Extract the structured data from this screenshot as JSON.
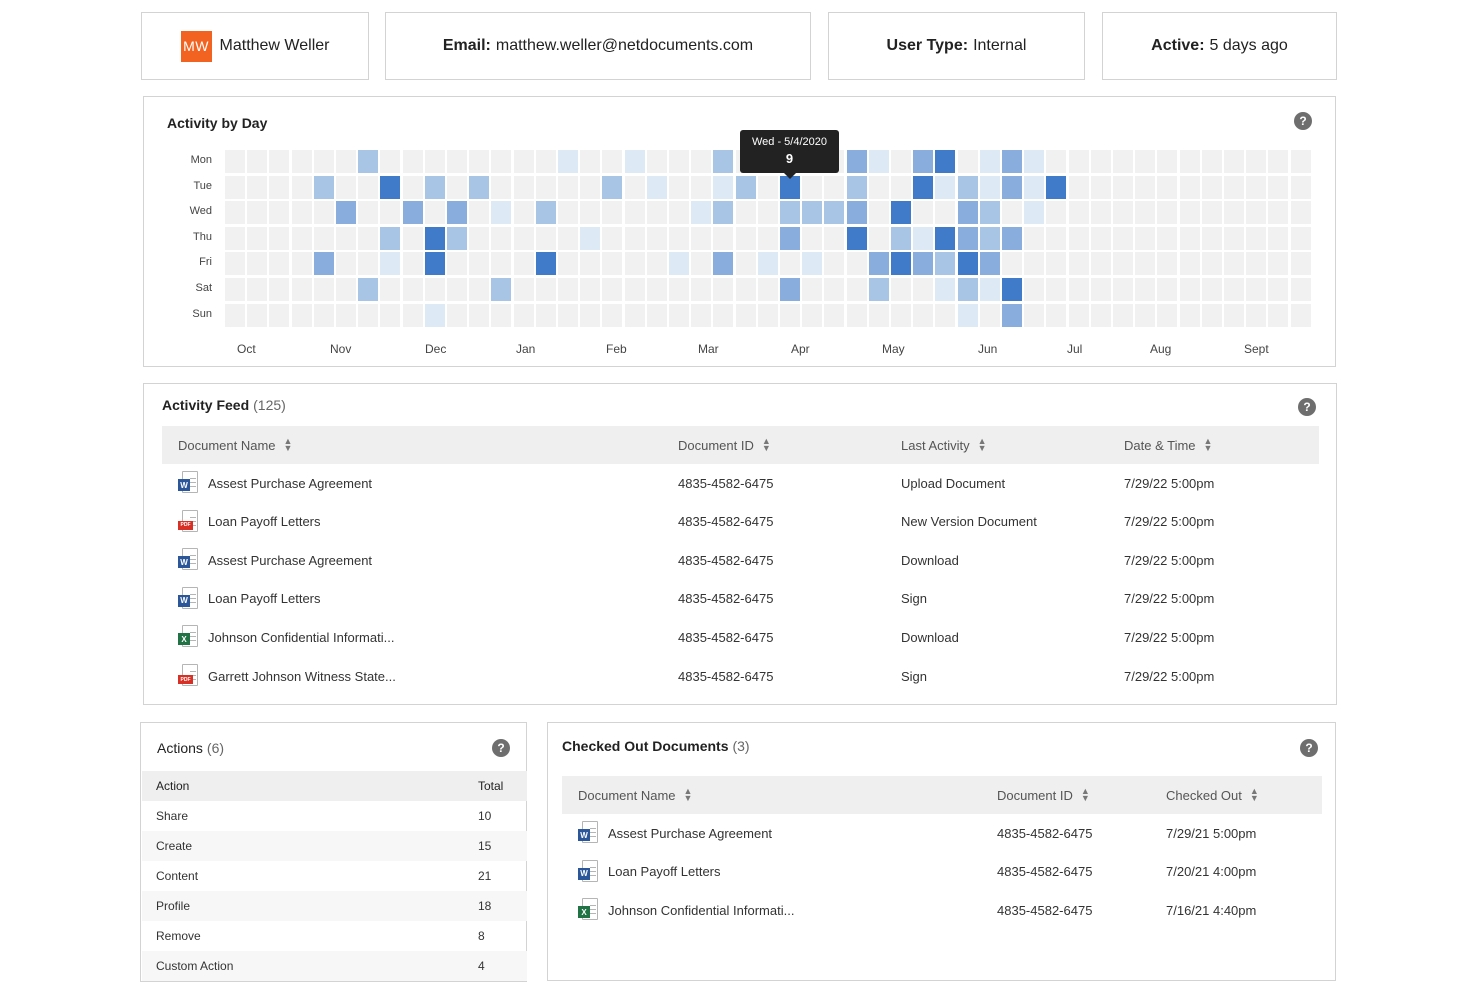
{
  "user": {
    "initials": "MW",
    "name": "Matthew Weller",
    "email_label": "Email:",
    "email": "matthew.weller@netdocuments.com",
    "type_label": "User Type:",
    "type": "Internal",
    "active_label": "Active:",
    "active": "5 days ago"
  },
  "activity_by_day": {
    "title": "Activity by Day",
    "days": [
      "Mon",
      "Tue",
      "Wed",
      "Thu",
      "Fri",
      "Sat",
      "Sun"
    ],
    "months": [
      "Oct",
      "Nov",
      "Dec",
      "Jan",
      "Feb",
      "Mar",
      "Apr",
      "May",
      "Jun",
      "Jul",
      "Aug",
      "Sept"
    ],
    "tooltip": {
      "date": "Wed - 5/4/2020",
      "value": "9"
    },
    "colors": {
      "empty": "#f1f1f1",
      "l1": "#dde9f5",
      "l2": "#a8c5e6",
      "l3": "#89aedd",
      "l4": "#3f7bc8"
    }
  },
  "chart_data": {
    "type": "heatmap",
    "title": "Activity by Day",
    "y_categories": [
      "Mon",
      "Tue",
      "Wed",
      "Thu",
      "Fri",
      "Sat",
      "Sun"
    ],
    "x_months": [
      "Oct",
      "Nov",
      "Dec",
      "Jan",
      "Feb",
      "Mar",
      "Apr",
      "May",
      "Jun",
      "Jul",
      "Aug",
      "Sept"
    ],
    "weeks": 49,
    "max_level": 4,
    "levels_by_day": [
      [
        0,
        0,
        0,
        0,
        0,
        0,
        2,
        0,
        0,
        0,
        0,
        0,
        0,
        0,
        0,
        1,
        0,
        0,
        1,
        0,
        0,
        0,
        2,
        0,
        0,
        3,
        0,
        0,
        3,
        1,
        0,
        3,
        4,
        0,
        1,
        3,
        1,
        0,
        0,
        0,
        0,
        0,
        0,
        0,
        0,
        0,
        0,
        0,
        0
      ],
      [
        0,
        0,
        0,
        0,
        2,
        0,
        0,
        4,
        0,
        2,
        0,
        2,
        0,
        0,
        0,
        0,
        0,
        2,
        0,
        1,
        0,
        0,
        1,
        2,
        0,
        4,
        0,
        0,
        2,
        0,
        0,
        4,
        1,
        2,
        1,
        3,
        1,
        4,
        0,
        0,
        0,
        0,
        0,
        0,
        0,
        0,
        0,
        0,
        0
      ],
      [
        0,
        0,
        0,
        0,
        0,
        3,
        0,
        0,
        3,
        0,
        3,
        0,
        1,
        0,
        2,
        0,
        0,
        0,
        0,
        0,
        0,
        1,
        2,
        0,
        0,
        2,
        2,
        2,
        3,
        0,
        4,
        0,
        0,
        3,
        2,
        0,
        1,
        0,
        0,
        0,
        0,
        0,
        0,
        0,
        0,
        0,
        0,
        0,
        0
      ],
      [
        0,
        0,
        0,
        0,
        0,
        0,
        0,
        2,
        0,
        4,
        2,
        0,
        0,
        0,
        0,
        0,
        1,
        0,
        0,
        0,
        0,
        0,
        0,
        0,
        0,
        3,
        0,
        0,
        4,
        0,
        2,
        1,
        4,
        3,
        2,
        3,
        0,
        0,
        0,
        0,
        0,
        0,
        0,
        0,
        0,
        0,
        0,
        0,
        0
      ],
      [
        0,
        0,
        0,
        0,
        3,
        0,
        0,
        1,
        0,
        4,
        0,
        0,
        0,
        0,
        4,
        0,
        0,
        0,
        0,
        0,
        1,
        0,
        3,
        0,
        1,
        0,
        1,
        0,
        0,
        3,
        4,
        3,
        2,
        4,
        3,
        0,
        0,
        0,
        0,
        0,
        0,
        0,
        0,
        0,
        0,
        0,
        0,
        0,
        0
      ],
      [
        0,
        0,
        0,
        0,
        0,
        0,
        2,
        0,
        0,
        0,
        0,
        0,
        2,
        0,
        0,
        0,
        0,
        0,
        0,
        0,
        0,
        0,
        0,
        0,
        0,
        3,
        0,
        0,
        0,
        2,
        0,
        0,
        1,
        2,
        1,
        4,
        0,
        0,
        0,
        0,
        0,
        0,
        0,
        0,
        0,
        0,
        0,
        0,
        0
      ],
      [
        0,
        0,
        0,
        0,
        0,
        0,
        0,
        0,
        0,
        1,
        0,
        0,
        0,
        0,
        0,
        0,
        0,
        0,
        0,
        0,
        0,
        0,
        0,
        0,
        0,
        0,
        0,
        0,
        0,
        0,
        0,
        0,
        0,
        1,
        0,
        3,
        0,
        0,
        0,
        0,
        0,
        0,
        0,
        0,
        0,
        0,
        0,
        0,
        0
      ]
    ]
  },
  "activity_feed": {
    "title": "Activity Feed",
    "count": "(125)",
    "columns": [
      "Document Name",
      "Document ID",
      "Last Activity",
      "Date & Time"
    ],
    "rows": [
      {
        "icon": "word",
        "name": "Assest Purchase Agreement",
        "id": "4835-4582-6475",
        "activity": "Upload Document",
        "date": "7/29/22 5:00pm"
      },
      {
        "icon": "pdf",
        "name": "Loan Payoff Letters",
        "id": "4835-4582-6475",
        "activity": "New Version Document",
        "date": "7/29/22 5:00pm"
      },
      {
        "icon": "word",
        "name": "Assest Purchase Agreement",
        "id": "4835-4582-6475",
        "activity": "Download",
        "date": "7/29/22 5:00pm"
      },
      {
        "icon": "word",
        "name": "Loan Payoff Letters",
        "id": "4835-4582-6475",
        "activity": "Sign",
        "date": "7/29/22 5:00pm"
      },
      {
        "icon": "excel",
        "name": "Johnson Confidential Informati...",
        "id": "4835-4582-6475",
        "activity": "Download",
        "date": "7/29/22 5:00pm"
      },
      {
        "icon": "pdf",
        "name": "Garrett Johnson Witness State...",
        "id": "4835-4582-6475",
        "activity": "Sign",
        "date": "7/29/22 5:00pm"
      }
    ]
  },
  "actions": {
    "title": "Actions",
    "count": "(6)",
    "columns": [
      "Action",
      "Total"
    ],
    "rows": [
      {
        "name": "Share",
        "total": "10"
      },
      {
        "name": "Create",
        "total": "15"
      },
      {
        "name": "Content",
        "total": "21"
      },
      {
        "name": "Profile",
        "total": "18"
      },
      {
        "name": "Remove",
        "total": "8"
      },
      {
        "name": "Custom Action",
        "total": "4"
      }
    ]
  },
  "checked_out": {
    "title": "Checked Out Documents",
    "count": "(3)",
    "columns": [
      "Document Name",
      "Document ID",
      "Checked Out"
    ],
    "rows": [
      {
        "icon": "word",
        "name": "Assest Purchase Agreement",
        "id": "4835-4582-6475",
        "checked": "7/29/21 5:00pm"
      },
      {
        "icon": "word",
        "name": "Loan Payoff Letters",
        "id": "4835-4582-6475",
        "checked": "7/20/21 4:00pm"
      },
      {
        "icon": "excel",
        "name": "Johnson Confidential Informati...",
        "id": "4835-4582-6475",
        "checked": "7/16/21 4:40pm"
      }
    ]
  },
  "help_glyph": "?",
  "icons": {
    "help": "question-circle-icon",
    "sort": "sort-arrows-icon",
    "word": "word-doc-icon",
    "pdf": "pdf-doc-icon",
    "excel": "excel-doc-icon"
  }
}
